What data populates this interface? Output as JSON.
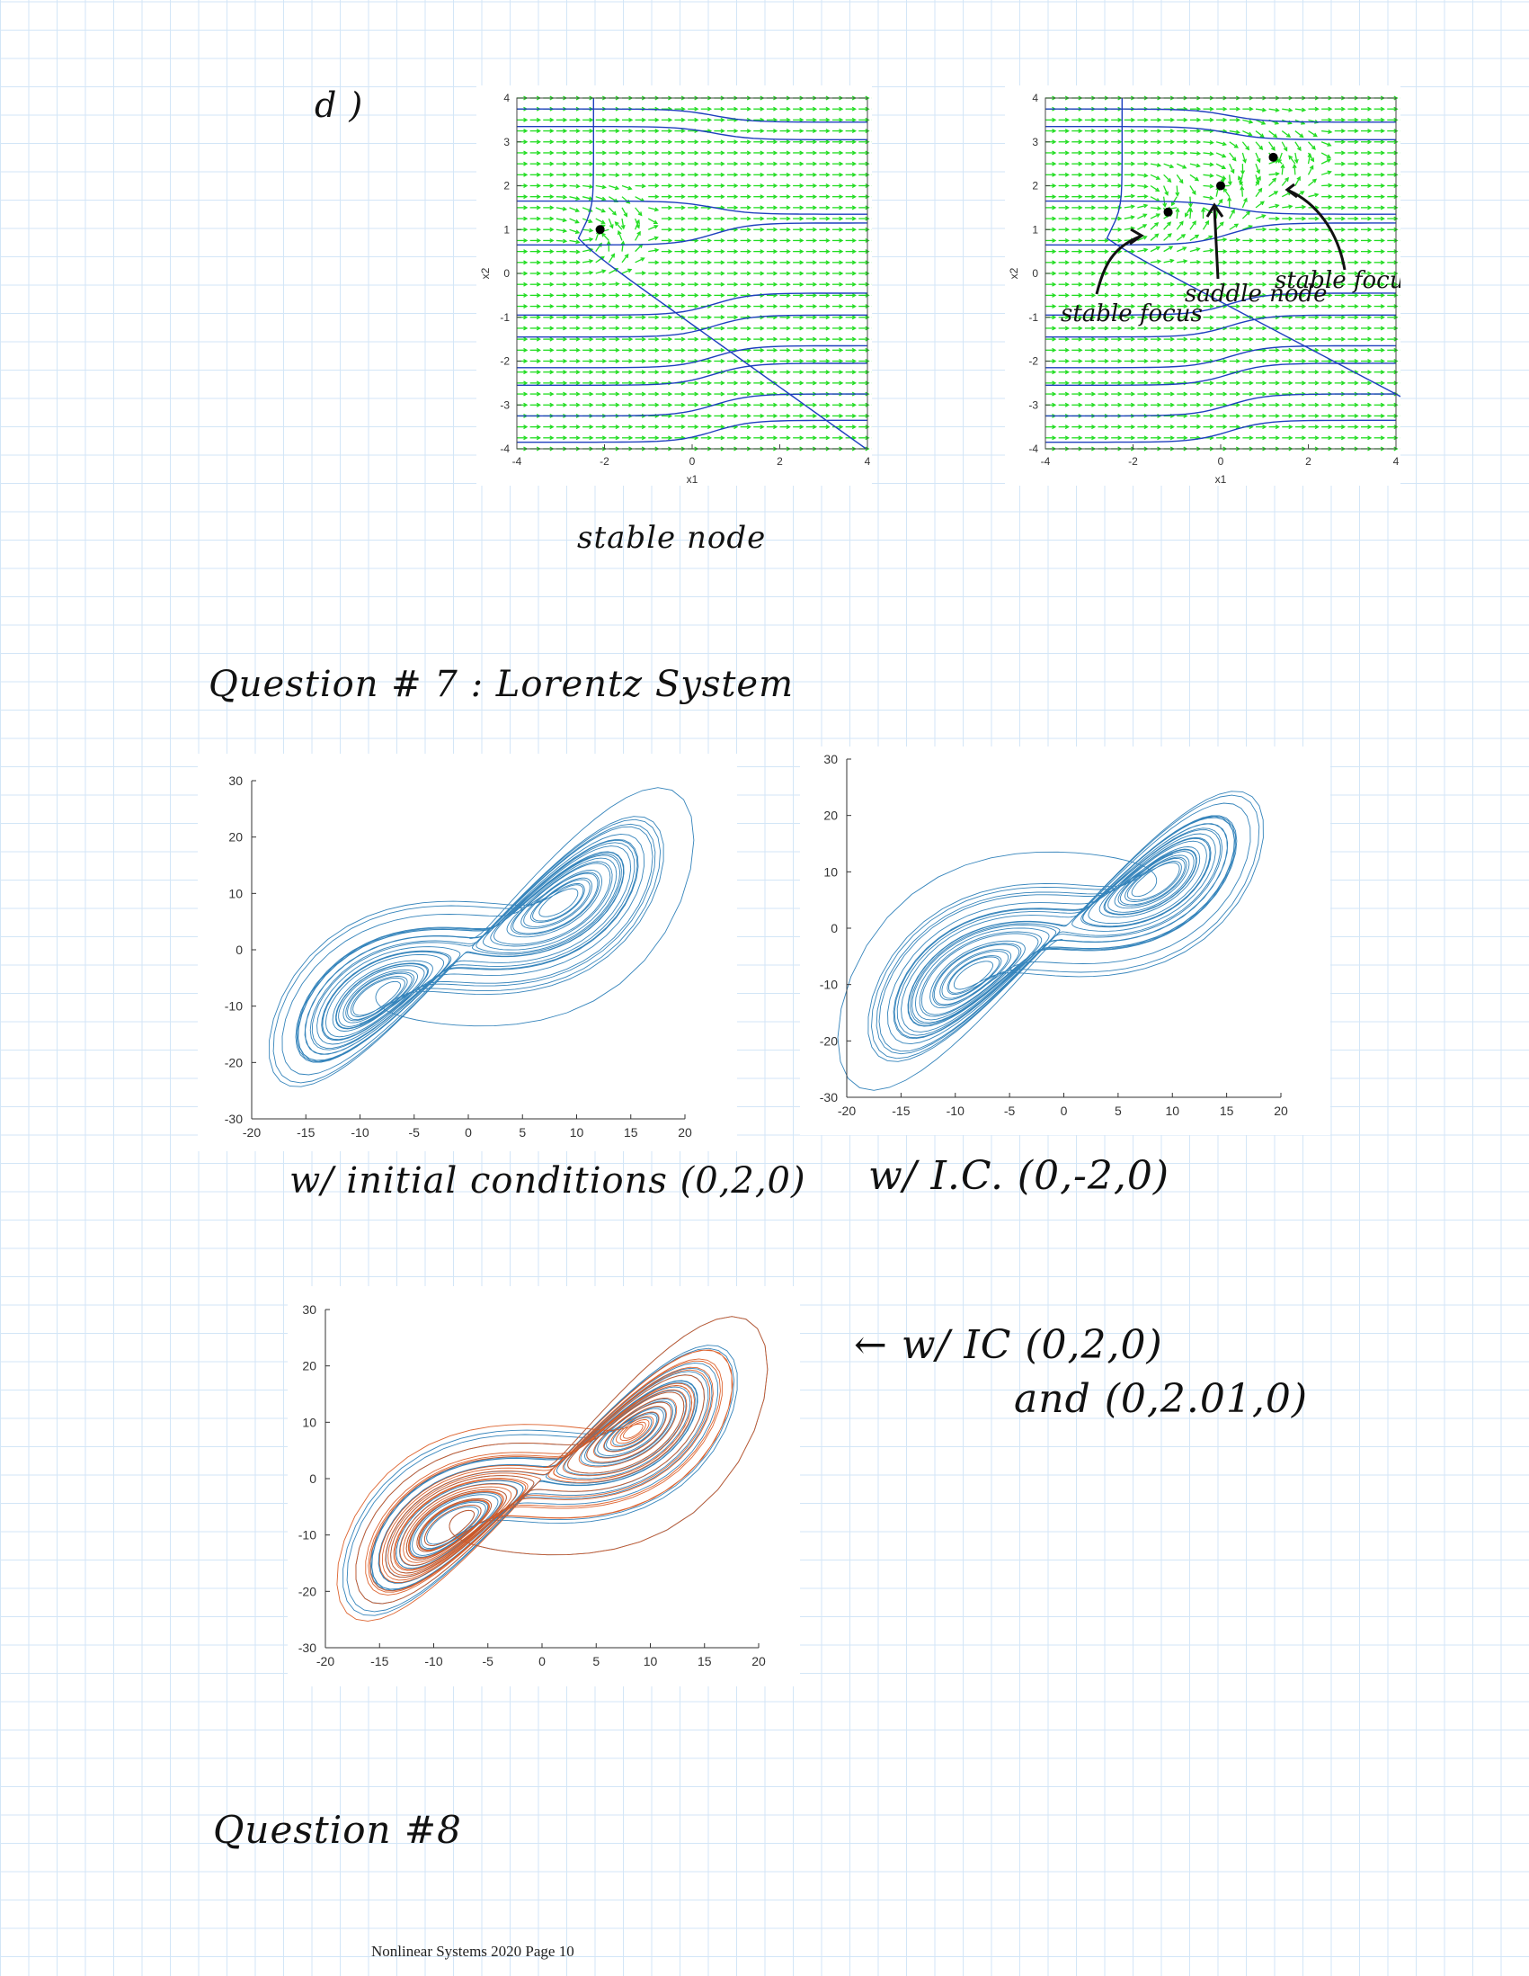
{
  "page": {
    "part_label": "d )",
    "stable_node_caption": "stable node",
    "question7_heading": "Question # 7 : Lorentz System",
    "plot1_caption": "w/ initial conditions (0,2,0)",
    "plot2_caption": "w/ I.C. (0,-2,0)",
    "plot3_caption_line1": "← w/ IC (0,2,0)",
    "plot3_caption_line2": "and (0,2.01,0)",
    "question8_heading": "Question #8",
    "footer": "Nonlinear Systems 2020 Page 10"
  },
  "phase_annotations": {
    "left_label": "stable focus",
    "middle_label": "saddle node",
    "right_label": "stable focus"
  },
  "chart_data": [
    {
      "type": "quiver",
      "xlabel": "x1",
      "ylabel": "x2",
      "xlim": [
        -4,
        4
      ],
      "ylim": [
        -4,
        4
      ],
      "xticks": [
        -4,
        -2,
        0,
        2,
        4
      ],
      "yticks": [
        -4,
        -3,
        -2,
        -1,
        0,
        1,
        2,
        3,
        4
      ],
      "equilibria": [
        {
          "x": -2.1,
          "y": 1.0
        }
      ],
      "arrow_color": "#22dd22",
      "trajectory_color": "#1f3fbf"
    },
    {
      "type": "quiver",
      "xlabel": "x1",
      "ylabel": "x2",
      "xlim": [
        -4,
        4
      ],
      "ylim": [
        -4,
        4
      ],
      "xticks": [
        -4,
        -2,
        0,
        2,
        4
      ],
      "yticks": [
        -4,
        -3,
        -2,
        -1,
        0,
        1,
        2,
        3,
        4
      ],
      "equilibria": [
        {
          "x": -1.2,
          "y": 1.4
        },
        {
          "x": 0.0,
          "y": 2.0
        },
        {
          "x": 1.2,
          "y": 2.65
        }
      ],
      "arrow_color": "#22dd22",
      "trajectory_color": "#1f3fbf"
    },
    {
      "type": "line",
      "xlim": [
        -20,
        20
      ],
      "ylim": [
        -30,
        30
      ],
      "xticks": [
        -20,
        -15,
        -10,
        -5,
        0,
        5,
        10,
        15,
        20
      ],
      "yticks": [
        -30,
        -20,
        -10,
        0,
        10,
        20,
        30
      ],
      "series_colors": [
        "#1f77b4"
      ],
      "attractor_centers": [
        [
          -8.5,
          -8.5
        ],
        [
          8.5,
          8.5
        ]
      ],
      "dense_wing": "left"
    },
    {
      "type": "line",
      "xlim": [
        -20,
        20
      ],
      "ylim": [
        -30,
        30
      ],
      "xticks": [
        -20,
        -15,
        -10,
        -5,
        0,
        5,
        10,
        15,
        20
      ],
      "yticks": [
        -30,
        -20,
        -10,
        0,
        10,
        20,
        30
      ],
      "series_colors": [
        "#1f77b4"
      ],
      "attractor_centers": [
        [
          -8.5,
          -8.5
        ],
        [
          8.5,
          8.5
        ]
      ],
      "dense_wing": "right"
    },
    {
      "type": "line",
      "xlim": [
        -20,
        20
      ],
      "ylim": [
        -30,
        30
      ],
      "xticks": [
        -20,
        -15,
        -10,
        -5,
        0,
        5,
        10,
        15,
        20
      ],
      "yticks": [
        -30,
        -20,
        -10,
        0,
        10,
        20,
        30
      ],
      "series_colors": [
        "#1f77b4",
        "#d95319"
      ],
      "attractor_centers": [
        [
          -8.5,
          -8.5
        ],
        [
          8.5,
          8.5
        ]
      ],
      "dense_wing": "both"
    }
  ]
}
